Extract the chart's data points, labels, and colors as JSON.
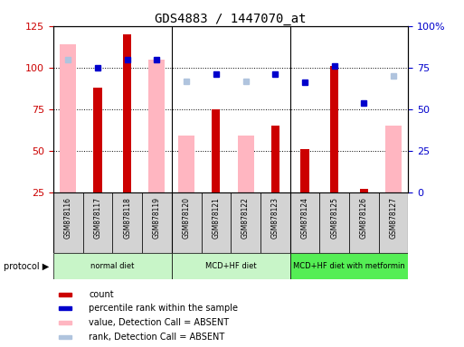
{
  "title": "GDS4883 / 1447070_at",
  "samples": [
    "GSM878116",
    "GSM878117",
    "GSM878118",
    "GSM878119",
    "GSM878120",
    "GSM878121",
    "GSM878122",
    "GSM878123",
    "GSM878124",
    "GSM878125",
    "GSM878126",
    "GSM878127"
  ],
  "count_values": [
    null,
    88,
    120,
    null,
    null,
    75,
    null,
    65,
    51,
    101,
    27,
    null
  ],
  "value_absent": [
    114,
    null,
    null,
    105,
    59,
    null,
    59,
    null,
    null,
    null,
    null,
    65
  ],
  "percentile_rank": [
    null,
    100,
    105,
    105,
    null,
    96,
    null,
    96,
    91,
    101,
    79,
    null
  ],
  "rank_absent": [
    105,
    null,
    null,
    null,
    92,
    null,
    92,
    null,
    null,
    null,
    null,
    95
  ],
  "proto_groups": [
    {
      "label": "normal diet",
      "start": 0,
      "end": 3,
      "color": "#c8f5c8"
    },
    {
      "label": "MCD+HF diet",
      "start": 4,
      "end": 7,
      "color": "#c8f5c8"
    },
    {
      "label": "MCD+HF diet with metformin",
      "start": 8,
      "end": 11,
      "color": "#55ee55"
    }
  ],
  "ylim_left": [
    25,
    125
  ],
  "ylim_right": [
    0,
    100
  ],
  "left_ticks": [
    25,
    50,
    75,
    100,
    125
  ],
  "right_ticks": [
    0,
    25,
    50,
    75,
    100
  ],
  "right_tick_labels": [
    "0",
    "25",
    "50",
    "75",
    "100%"
  ],
  "left_axis_color": "#cc0000",
  "right_axis_color": "#0000cc",
  "count_color": "#cc0000",
  "value_absent_color": "#ffb6c1",
  "rank_color": "#0000cc",
  "rank_absent_color": "#b0c4de",
  "protocol_row_color": "#d3d3d3",
  "separator_indices": [
    3,
    7
  ],
  "legend_items": [
    {
      "color": "#cc0000",
      "label": "count"
    },
    {
      "color": "#0000cc",
      "label": "percentile rank within the sample"
    },
    {
      "color": "#ffb6c1",
      "label": "value, Detection Call = ABSENT"
    },
    {
      "color": "#b0c4de",
      "label": "rank, Detection Call = ABSENT"
    }
  ]
}
